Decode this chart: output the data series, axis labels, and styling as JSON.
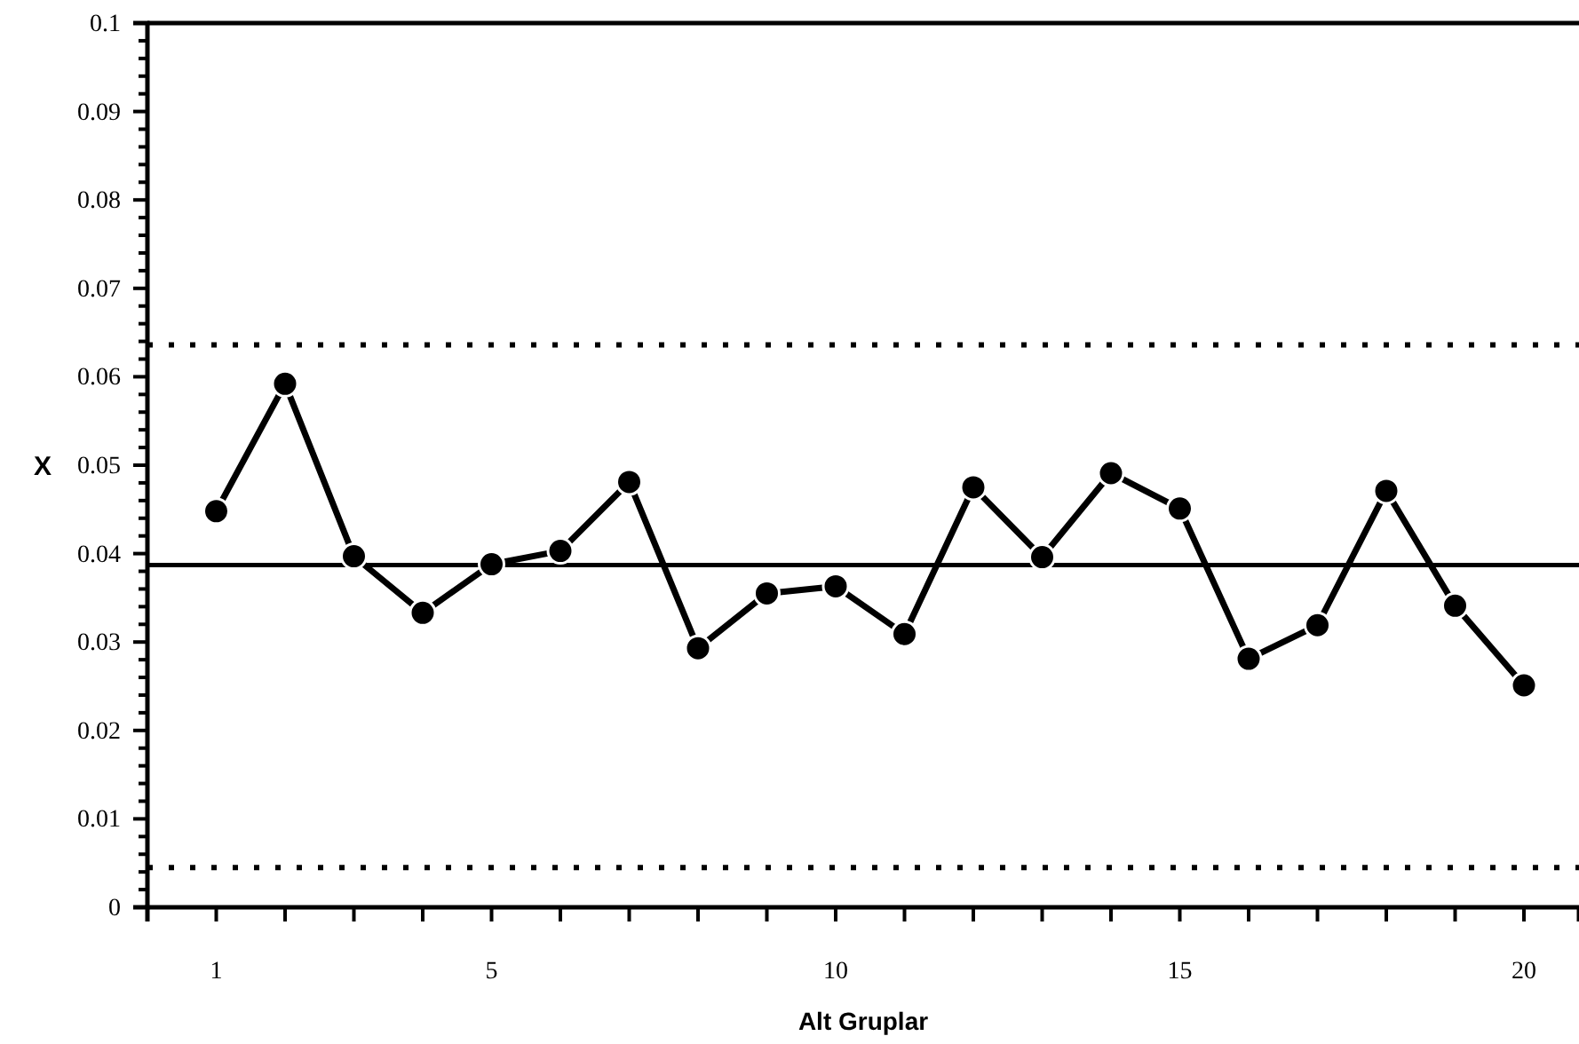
{
  "chart_data": {
    "type": "line",
    "xlabel": "Alt Gruplar",
    "ylabel": "X",
    "x": [
      1,
      2,
      3,
      4,
      5,
      6,
      7,
      8,
      9,
      10,
      11,
      12,
      13,
      14,
      15,
      16,
      17,
      18,
      19,
      20
    ],
    "series": [
      {
        "color": "#000000",
        "values": [
          0.0448,
          0.0592,
          0.0397,
          0.0333,
          0.0388,
          0.0403,
          0.0481,
          0.0293,
          0.0355,
          0.0363,
          0.0309,
          0.0475,
          0.0396,
          0.0491,
          0.0451,
          0.0281,
          0.0319,
          0.0471,
          0.0341,
          0.0251
        ]
      }
    ],
    "marker": "circle",
    "line_style": "solid",
    "grid": false,
    "xlim": [
      0,
      20.8
    ],
    "xticks": [
      1,
      {
        "value": 2,
        "label": null
      },
      {
        "value": 3,
        "label": null
      },
      {
        "value": 4,
        "label": null
      },
      5,
      {
        "value": 6,
        "label": null
      },
      {
        "value": 7,
        "label": null
      },
      {
        "value": 8,
        "label": null
      },
      {
        "value": 9,
        "label": null
      },
      10,
      {
        "value": 11,
        "label": null
      },
      {
        "value": 12,
        "label": null
      },
      {
        "value": 13,
        "label": null
      },
      {
        "value": 14,
        "label": null
      },
      15,
      {
        "value": 16,
        "label": null
      },
      {
        "value": 17,
        "label": null
      },
      {
        "value": 18,
        "label": null
      },
      {
        "value": 19,
        "label": null
      },
      20
    ],
    "ylim": [
      0,
      0.1
    ],
    "yticks": [
      0,
      {
        "value": 0.002,
        "label": null
      },
      {
        "value": 0.004,
        "label": null
      },
      {
        "value": 0.006,
        "label": null
      },
      {
        "value": 0.008,
        "label": null
      },
      0.01,
      {
        "value": 0.012,
        "label": null
      },
      {
        "value": 0.014,
        "label": null
      },
      {
        "value": 0.016,
        "label": null
      },
      {
        "value": 0.018,
        "label": null
      },
      0.02,
      {
        "value": 0.022,
        "label": null
      },
      {
        "value": 0.024,
        "label": null
      },
      {
        "value": 0.026,
        "label": null
      },
      {
        "value": 0.028,
        "label": null
      },
      0.03,
      {
        "value": 0.032,
        "label": null
      },
      {
        "value": 0.034,
        "label": null
      },
      {
        "value": 0.036,
        "label": null
      },
      {
        "value": 0.038,
        "label": null
      },
      0.04,
      {
        "value": 0.042,
        "label": null
      },
      {
        "value": 0.044,
        "label": null
      },
      {
        "value": 0.046,
        "label": null
      },
      {
        "value": 0.048,
        "label": null
      },
      0.05,
      {
        "value": 0.052,
        "label": null
      },
      {
        "value": 0.054,
        "label": null
      },
      {
        "value": 0.056,
        "label": null
      },
      {
        "value": 0.058,
        "label": null
      },
      0.06,
      {
        "value": 0.062,
        "label": null
      },
      {
        "value": 0.064,
        "label": null
      },
      {
        "value": 0.066,
        "label": null
      },
      {
        "value": 0.068,
        "label": null
      },
      0.07,
      {
        "value": 0.072,
        "label": null
      },
      {
        "value": 0.074,
        "label": null
      },
      {
        "value": 0.076,
        "label": null
      },
      {
        "value": 0.078,
        "label": null
      },
      0.08,
      {
        "value": 0.082,
        "label": null
      },
      {
        "value": 0.084,
        "label": null
      },
      {
        "value": 0.086,
        "label": null
      },
      {
        "value": 0.088,
        "label": null
      },
      0.09,
      {
        "value": 0.092,
        "label": null
      },
      {
        "value": 0.094,
        "label": null
      },
      {
        "value": 0.096,
        "label": null
      },
      {
        "value": 0.098,
        "label": null
      },
      0.1
    ],
    "ref_lines": [
      {
        "axis": "y",
        "value": 0.0636,
        "line_style": "dotted",
        "color": "#000000"
      },
      {
        "axis": "y",
        "value": 0.0387,
        "line_style": "solid",
        "color": "#000000"
      },
      {
        "axis": "y",
        "value": 0.0045,
        "line_style": "dotted",
        "color": "#000000"
      }
    ]
  }
}
